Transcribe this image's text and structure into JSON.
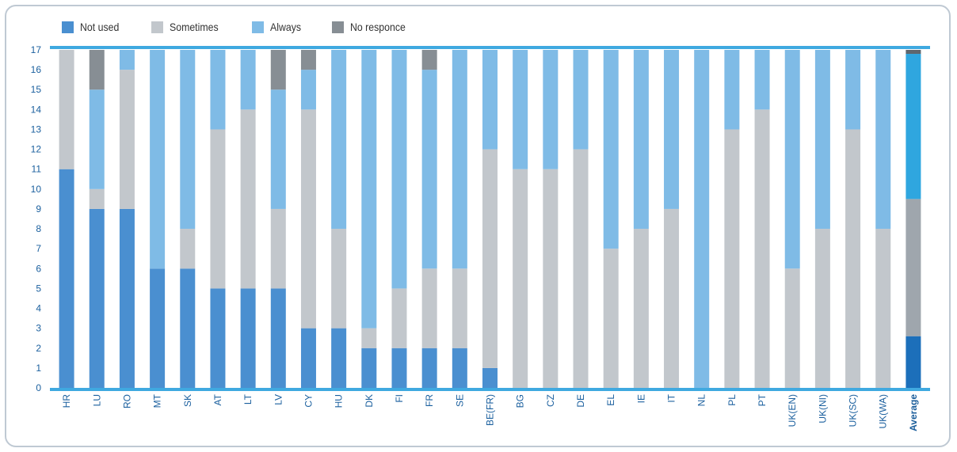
{
  "chart_data": {
    "type": "bar",
    "stacked": true,
    "categories": [
      "HR",
      "LU",
      "RO",
      "MT",
      "SK",
      "AT",
      "LT",
      "LV",
      "CY",
      "HU",
      "DK",
      "FI",
      "FR",
      "SE",
      "BE(FR)",
      "BG",
      "CZ",
      "DE",
      "EL",
      "IE",
      "IT",
      "NL",
      "PL",
      "PT",
      "UK(EN)",
      "UK(NI)",
      "UK(SC)",
      "UK(WA)",
      "Average"
    ],
    "series": [
      {
        "name": "Not used",
        "color": "#4a8fd0",
        "values": [
          11,
          9,
          9,
          6,
          6,
          5,
          5,
          5,
          3,
          3,
          2,
          2,
          2,
          2,
          1,
          0,
          0,
          0,
          0,
          0,
          0,
          0,
          0,
          0,
          0,
          0,
          0,
          0,
          2.6
        ]
      },
      {
        "name": "Sometimes",
        "color": "#c2c7cc",
        "values": [
          6,
          1,
          7,
          0,
          2,
          8,
          9,
          4,
          11,
          5,
          1,
          3,
          4,
          4,
          11,
          11,
          11,
          12,
          7,
          8,
          9,
          0,
          13,
          14,
          6,
          8,
          13,
          8,
          6.9
        ]
      },
      {
        "name": "Always",
        "color": "#7fbbe6",
        "values": [
          0,
          5,
          1,
          11,
          9,
          4,
          3,
          6,
          2,
          9,
          14,
          12,
          10,
          11,
          5,
          6,
          6,
          5,
          10,
          9,
          8,
          17,
          4,
          3,
          11,
          9,
          4,
          9,
          7.3
        ]
      },
      {
        "name": "No responce",
        "color": "#878e94",
        "values": [
          0,
          2,
          0,
          0,
          0,
          0,
          0,
          2,
          1,
          0,
          0,
          0,
          1,
          0,
          0,
          0,
          0,
          0,
          0,
          0,
          0,
          0,
          0,
          0,
          0,
          0,
          0,
          0,
          0.2
        ]
      }
    ],
    "average_colors": [
      "#1c6fba",
      "#9fa6ad",
      "#2fa6df",
      "#5f666d"
    ],
    "ylim": [
      0,
      17
    ],
    "yticks": [
      0,
      1,
      2,
      3,
      4,
      5,
      6,
      7,
      8,
      9,
      10,
      11,
      12,
      13,
      14,
      15,
      16,
      17
    ],
    "legend_position": "top-left",
    "grid": false
  }
}
